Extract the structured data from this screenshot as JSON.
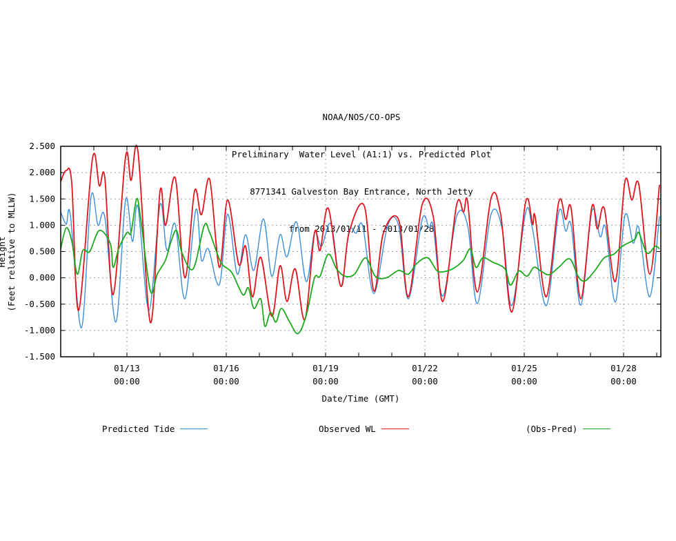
{
  "chart_data": {
    "type": "line",
    "title_lines": [
      "NOAA/NOS/CO-OPS",
      "Preliminary  Water Level (A1:1) vs. Predicted Plot",
      "8771341 Galveston Bay Entrance, North Jetty",
      "from 2013/01/11 - 2013/01/28"
    ],
    "xlabel": "Date/Time (GMT)",
    "ylabel_lines": [
      "Height",
      "(Feet relative to MLLW)"
    ],
    "xlim": [
      "2013-01-11 00:00",
      "2013-01-29 03:00"
    ],
    "ylim": [
      -1.5,
      2.5
    ],
    "yticks": [
      "2.500",
      "2.000",
      "1.500",
      "1.000",
      "0.500",
      "0.000",
      "-0.500",
      "-1.000",
      "-1.500"
    ],
    "xticks": [
      {
        "date": "01/13",
        "time": "00:00",
        "at": "2013-01-13 00:00"
      },
      {
        "date": "01/16",
        "time": "00:00",
        "at": "2013-01-16 00:00"
      },
      {
        "date": "01/19",
        "time": "00:00",
        "at": "2013-01-19 00:00"
      },
      {
        "date": "01/22",
        "time": "00:00",
        "at": "2013-01-22 00:00"
      },
      {
        "date": "01/25",
        "time": "00:00",
        "at": "2013-01-25 00:00"
      },
      {
        "date": "01/28",
        "time": "00:00",
        "at": "2013-01-28 00:00"
      }
    ],
    "grid": true,
    "legend_placement": "bottom",
    "series": [
      {
        "name": "Predicted Tide",
        "color": "#3a8fdc",
        "times": [
          "2013-01-11 00:00",
          "2013-01-11 04:00",
          "2013-01-11 07:00",
          "2013-01-11 15:00",
          "2013-01-11 22:00",
          "2013-01-12 03:00",
          "2013-01-12 08:00",
          "2013-01-12 16:00",
          "2013-01-12 23:00",
          "2013-01-13 04:00",
          "2013-01-13 08:00",
          "2013-01-13 16:00",
          "2013-01-14 00:00",
          "2013-01-14 05:00",
          "2013-01-14 11:00",
          "2013-01-14 18:00",
          "2013-01-15 02:00",
          "2013-01-15 06:00",
          "2013-01-15 11:00",
          "2013-01-15 19:00",
          "2013-01-16 01:00",
          "2013-01-16 08:00",
          "2013-01-16 14:00",
          "2013-01-16 20:00",
          "2013-01-17 03:00",
          "2013-01-17 09:00",
          "2013-01-17 15:00",
          "2013-01-17 20:00",
          "2013-01-18 03:00",
          "2013-01-18 10:00",
          "2013-01-18 16:00",
          "2013-01-18 21:00",
          "2013-01-19 04:00",
          "2013-01-19 11:00",
          "2013-01-19 17:00",
          "2013-01-19 22:00",
          "2013-01-20 03:00",
          "2013-01-20 11:00",
          "2013-01-20 21:00",
          "2013-01-21 05:00",
          "2013-01-21 12:00",
          "2013-01-21 22:00",
          "2013-01-22 03:00",
          "2013-01-22 06:00",
          "2013-01-22 13:00",
          "2013-01-22 23:00",
          "2013-01-23 07:00",
          "2013-01-23 14:00",
          "2013-01-24 00:00",
          "2013-01-24 08:00",
          "2013-01-24 15:00",
          "2013-01-25 01:00",
          "2013-01-25 06:00",
          "2013-01-25 16:00",
          "2013-01-26 01:00",
          "2013-01-26 06:00",
          "2013-01-26 10:00",
          "2013-01-26 17:00",
          "2013-01-27 01:00",
          "2013-01-27 07:00",
          "2013-01-27 11:00",
          "2013-01-27 18:00",
          "2013-01-28 01:00",
          "2013-01-28 07:00",
          "2013-01-28 11:00",
          "2013-01-28 19:00",
          "2013-01-29 02:00"
        ],
        "values": [
          1.25,
          1.02,
          1.19,
          -0.95,
          1.54,
          1.0,
          1.15,
          -0.84,
          1.48,
          0.69,
          1.35,
          -0.62,
          1.39,
          0.52,
          1.02,
          -0.4,
          1.3,
          0.34,
          0.55,
          -0.13,
          1.21,
          0.07,
          0.82,
          0.14,
          1.12,
          0.03,
          0.82,
          0.4,
          1.06,
          -0.07,
          0.86,
          0.6,
          1.02,
          -0.16,
          0.89,
          0.85,
          0.98,
          -0.3,
          0.99,
          0.99,
          -0.4,
          1.11,
          0.95,
          0.98,
          -0.35,
          1.17,
          0.99,
          -0.49,
          1.21,
          0.93,
          -0.53,
          1.24,
          0.93,
          -0.53,
          1.25,
          0.89,
          1.0,
          -0.52,
          1.27,
          0.78,
          0.95,
          -0.46,
          1.19,
          0.66,
          0.95,
          -0.36,
          1.17
        ]
      },
      {
        "name": "Observed WL",
        "color": "#e3141c",
        "times": [
          "2013-01-11 00:00",
          "2013-01-11 04:00",
          "2013-01-11 08:00",
          "2013-01-11 13:00",
          "2013-01-11 23:00",
          "2013-01-12 04:00",
          "2013-01-12 08:00",
          "2013-01-12 14:00",
          "2013-01-12 23:00",
          "2013-01-13 03:00",
          "2013-01-13 08:00",
          "2013-01-13 17:00",
          "2013-01-14 00:00",
          "2013-01-14 04:00",
          "2013-01-14 11:00",
          "2013-01-14 18:00",
          "2013-01-15 01:00",
          "2013-01-15 06:00",
          "2013-01-15 12:00",
          "2013-01-15 19:00",
          "2013-01-16 01:00",
          "2013-01-16 09:00",
          "2013-01-16 14:00",
          "2013-01-16 19:00",
          "2013-01-17 01:00",
          "2013-01-17 09:00",
          "2013-01-17 15:00",
          "2013-01-17 20:00",
          "2013-01-18 02:00",
          "2013-01-18 09:00",
          "2013-01-18 16:00",
          "2013-01-18 20:00",
          "2013-01-19 02:00",
          "2013-01-19 11:00",
          "2013-01-19 17:00",
          "2013-01-20 04:00",
          "2013-01-20 11:00",
          "2013-01-20 18:00",
          "2013-01-21 05:00",
          "2013-01-21 12:00",
          "2013-01-21 22:00",
          "2013-01-22 06:00",
          "2013-01-22 13:00",
          "2013-01-22 23:00",
          "2013-01-23 04:00",
          "2013-01-23 07:00",
          "2013-01-23 14:00",
          "2013-01-24 00:00",
          "2013-01-24 07:00",
          "2013-01-24 15:00",
          "2013-01-25 01:00",
          "2013-01-25 06:00",
          "2013-01-25 08:00",
          "2013-01-25 16:00",
          "2013-01-26 01:00",
          "2013-01-26 06:00",
          "2013-01-26 10:00",
          "2013-01-26 17:00",
          "2013-01-27 01:00",
          "2013-01-27 05:00",
          "2013-01-27 10:00",
          "2013-01-27 18:00",
          "2013-01-28 01:00",
          "2013-01-28 06:00",
          "2013-01-28 11:00",
          "2013-01-28 19:00",
          "2013-01-29 02:00"
        ],
        "values": [
          1.83,
          2.04,
          1.8,
          -0.62,
          2.26,
          1.75,
          1.9,
          -0.32,
          2.3,
          1.85,
          2.4,
          -0.85,
          1.65,
          1.0,
          1.9,
          0.0,
          1.65,
          1.2,
          1.87,
          0.2,
          1.48,
          0.26,
          0.6,
          -0.36,
          0.39,
          -0.73,
          0.23,
          -0.45,
          0.17,
          -0.79,
          0.86,
          0.52,
          1.32,
          -0.16,
          0.86,
          1.37,
          -0.25,
          0.86,
          1.1,
          -0.36,
          1.39,
          1.17,
          -0.45,
          1.39,
          1.25,
          1.44,
          -0.27,
          1.52,
          1.19,
          -0.65,
          1.44,
          1.02,
          1.15,
          -0.36,
          1.44,
          1.11,
          1.32,
          -0.4,
          1.35,
          0.93,
          1.32,
          -0.07,
          1.83,
          1.48,
          1.78,
          0.07,
          1.77
        ]
      },
      {
        "name": "(Obs-Pred)",
        "color": "#1caa1c",
        "times": [
          "2013-01-11 00:00",
          "2013-01-11 04:00",
          "2013-01-11 08:00",
          "2013-01-11 12:00",
          "2013-01-11 16:00",
          "2013-01-11 21:00",
          "2013-01-12 04:00",
          "2013-01-12 12:00",
          "2013-01-12 14:00",
          "2013-01-12 18:00",
          "2013-01-13 00:00",
          "2013-01-13 03:00",
          "2013-01-13 07:00",
          "2013-01-13 10:00",
          "2013-01-13 17:00",
          "2013-01-13 22:00",
          "2013-01-14 04:00",
          "2013-01-14 08:00",
          "2013-01-14 12:00",
          "2013-01-14 16:00",
          "2013-01-15 00:00",
          "2013-01-15 08:00",
          "2013-01-15 12:00",
          "2013-01-15 20:00",
          "2013-01-16 04:00",
          "2013-01-16 12:00",
          "2013-01-16 16:00",
          "2013-01-16 20:00",
          "2013-01-17 01:00",
          "2013-01-17 04:00",
          "2013-01-17 08:00",
          "2013-01-17 12:00",
          "2013-01-17 16:00",
          "2013-01-17 22:00",
          "2013-01-18 04:00",
          "2013-01-18 10:00",
          "2013-01-18 16:00",
          "2013-01-18 20:00",
          "2013-01-19 02:00",
          "2013-01-19 08:00",
          "2013-01-19 14:00",
          "2013-01-19 21:00",
          "2013-01-20 05:00",
          "2013-01-20 12:00",
          "2013-01-20 20:00",
          "2013-01-21 05:00",
          "2013-01-21 12:00",
          "2013-01-21 18:00",
          "2013-01-22 02:00",
          "2013-01-22 09:00",
          "2013-01-22 16:00",
          "2013-01-22 22:00",
          "2013-01-23 04:00",
          "2013-01-23 09:00",
          "2013-01-23 13:00",
          "2013-01-23 18:00",
          "2013-01-24 01:00",
          "2013-01-24 10:00",
          "2013-01-24 14:00",
          "2013-01-24 20:00",
          "2013-01-25 02:00",
          "2013-01-25 07:00",
          "2013-01-25 12:00",
          "2013-01-25 18:00",
          "2013-01-26 01:00",
          "2013-01-26 09:00",
          "2013-01-26 15:00",
          "2013-01-26 20:00",
          "2013-01-27 03:00",
          "2013-01-27 10:00",
          "2013-01-27 17:00",
          "2013-01-27 23:00",
          "2013-01-28 08:00",
          "2013-01-28 11:00",
          "2013-01-28 17:00",
          "2013-01-28 23:00",
          "2013-01-29 02:00"
        ],
        "values": [
          0.55,
          0.95,
          0.7,
          0.07,
          0.52,
          0.5,
          0.9,
          0.65,
          0.2,
          0.55,
          0.86,
          0.86,
          1.5,
          1.12,
          -0.25,
          0.07,
          0.34,
          0.69,
          0.9,
          0.47,
          0.17,
          0.99,
          0.86,
          0.3,
          0.1,
          -0.32,
          -0.19,
          -0.58,
          -0.4,
          -0.92,
          -0.66,
          -0.84,
          -0.58,
          -0.84,
          -1.06,
          -0.71,
          0.0,
          0.03,
          0.45,
          0.17,
          0.03,
          0.07,
          0.38,
          0.03,
          0.0,
          0.14,
          0.07,
          0.27,
          0.38,
          0.13,
          0.13,
          0.2,
          0.34,
          0.55,
          0.2,
          0.38,
          0.3,
          0.17,
          -0.14,
          0.13,
          0.03,
          0.2,
          0.13,
          0.06,
          0.2,
          0.36,
          0.03,
          -0.06,
          0.13,
          0.38,
          0.45,
          0.6,
          0.73,
          0.86,
          0.47,
          0.6,
          0.55
        ]
      }
    ]
  }
}
